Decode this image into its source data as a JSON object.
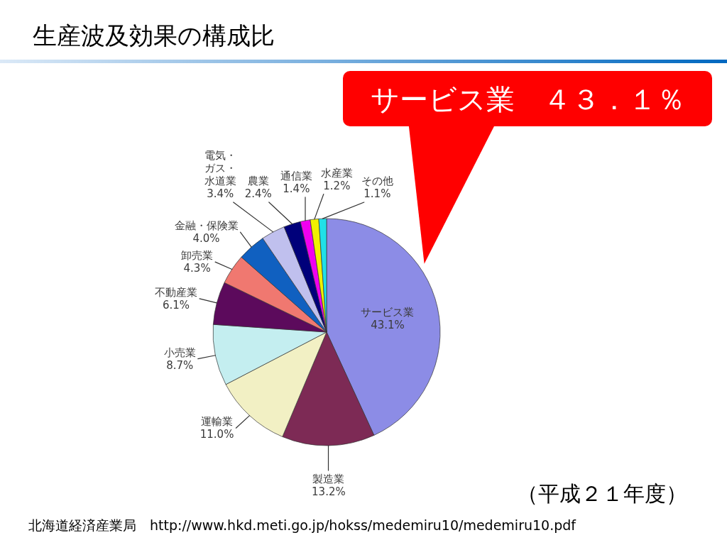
{
  "chart_data": {
    "type": "pie",
    "title": "生産波及効果の構成比",
    "categories": [
      "サービス業",
      "製造業",
      "運輸業",
      "小売業",
      "不動産業",
      "卸売業",
      "金融・保険業",
      "電気・ガス・水道業",
      "農業",
      "通信業",
      "水産業",
      "その他"
    ],
    "values": [
      43.1,
      13.2,
      11.0,
      8.7,
      6.1,
      4.3,
      4.0,
      3.4,
      2.4,
      1.4,
      1.2,
      1.1
    ],
    "value_labels": [
      "43.1%",
      "13.2%",
      "11.0%",
      "8.7%",
      "6.1%",
      "4.3%",
      "4.0%",
      "3.4%",
      "2.4%",
      "1.4%",
      "1.2%",
      "1.1%"
    ],
    "colors": [
      "#8c8ce6",
      "#7d2a55",
      "#f2f0c4",
      "#c4eef0",
      "#5c0a5c",
      "#f07870",
      "#1060c0",
      "#c0c0ee",
      "#00007a",
      "#f000f0",
      "#f0f000",
      "#20e0e8"
    ],
    "annotations": [
      "サービス業　４３．１％",
      "（平成２１年度）",
      "北海道経済産業局　http://www.hkd.meti.go.jp/hokss/medemiru10/medemiru10.pdf"
    ]
  }
}
